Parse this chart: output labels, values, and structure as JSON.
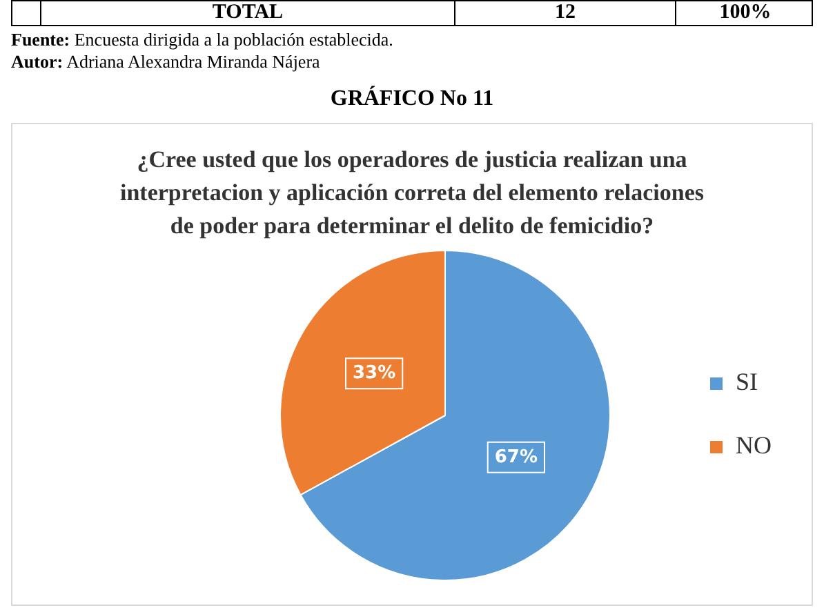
{
  "chart_data": {
    "type": "pie",
    "title": "¿Cree usted que los operadores de justicia realizan una interpretacion y aplicación correta del elemento relaciones de poder para determinar el delito de femicidio?",
    "categories": [
      "SI",
      "NO"
    ],
    "values": [
      67,
      33
    ],
    "colors": [
      "#5b9bd5",
      "#ed7d31"
    ],
    "value_labels": [
      "67%",
      "33%"
    ],
    "legend": "right",
    "annotations": [
      "TOTAL",
      "12",
      "100%",
      "Fuente: Encuesta dirigida a la población establecida.",
      "Autor: Adriana Alexandra Miranda Nájera",
      "GRÁFICO No 11"
    ]
  }
}
